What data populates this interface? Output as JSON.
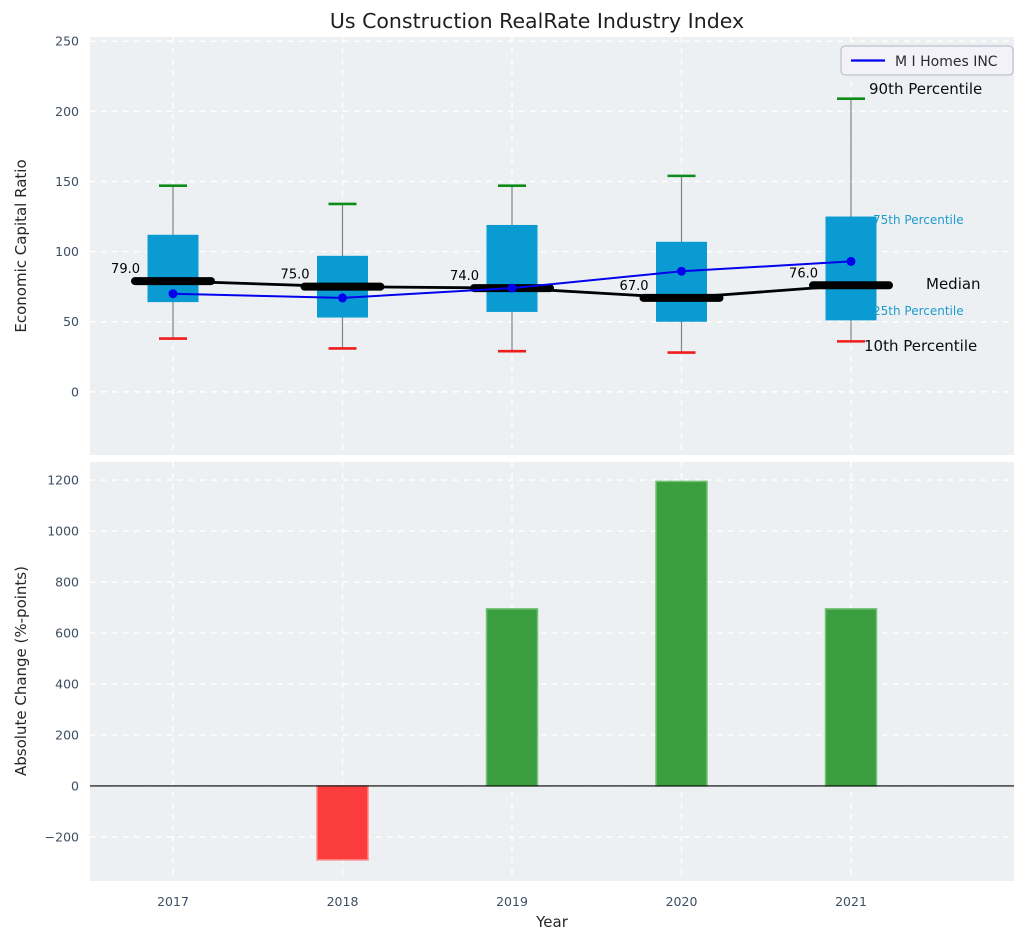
{
  "title": "Us Construction RealRate Industry Index",
  "legend": {
    "label": "M I Homes INC"
  },
  "colors": {
    "panel_bg": "#ecf0f2",
    "grid": "#ffffff",
    "box_fill": "#0a9bd3",
    "median_color": "#000000",
    "company_line": "#0202ee",
    "whisker": "#828282",
    "cap_top": "#0e8c1a",
    "cap_bottom": "#ee1c1c",
    "bar_positive": "#3b9e3f",
    "bar_positive_edge": "#74c178",
    "bar_negative": "#fb3d3d",
    "bar_negative_edge": "#ff8585",
    "tick_label": "#3d4f63",
    "annotation_percentile": "#1f9bcd",
    "legend_bg": "#f2f2f8",
    "legend_border": "#b5b5c0"
  },
  "chart_data": [
    {
      "type": "boxplot+line",
      "title": "Us Construction RealRate Industry Index",
      "ylabel": "Economic Capital Ratio",
      "ylim": [
        -45,
        253
      ],
      "yticks": [
        0,
        50,
        100,
        150,
        200,
        250
      ],
      "grid": "dashed-white",
      "categories": [
        "2017",
        "2018",
        "2019",
        "2020",
        "2021"
      ],
      "boxes": [
        {
          "year": "2017",
          "p10": 38,
          "p25": 64,
          "median": 79.0,
          "p75": 112,
          "p90": 147,
          "median_label": "79.0"
        },
        {
          "year": "2018",
          "p10": 31,
          "p25": 53,
          "median": 75.0,
          "p75": 97,
          "p90": 134,
          "median_label": "75.0"
        },
        {
          "year": "2019",
          "p10": 29,
          "p25": 57,
          "median": 74.0,
          "p75": 119,
          "p90": 147,
          "median_label": "74.0"
        },
        {
          "year": "2020",
          "p10": 28,
          "p25": 50,
          "median": 67.0,
          "p75": 107,
          "p90": 154,
          "median_label": "67.0"
        },
        {
          "year": "2021",
          "p10": 36,
          "p25": 51,
          "median": 76.0,
          "p75": 125,
          "p90": 209,
          "median_label": "76.0"
        }
      ],
      "series": [
        {
          "name": "M I Homes INC",
          "values": [
            70,
            67,
            74,
            86,
            93
          ]
        }
      ],
      "annotations": [
        {
          "text": "90th Percentile",
          "style": "black"
        },
        {
          "text": "75th Percentile",
          "style": "cyan"
        },
        {
          "text": "Median",
          "style": "black"
        },
        {
          "text": "25th Percentile",
          "style": "cyan"
        },
        {
          "text": "10th Percentile",
          "style": "black"
        }
      ],
      "legend_position": "upper right"
    },
    {
      "type": "bar",
      "xlabel": "Year",
      "ylabel": "Absolute Change (%-points)",
      "ylim": [
        -373,
        1271
      ],
      "yticks": [
        -200,
        0,
        200,
        400,
        600,
        800,
        1000,
        1200
      ],
      "grid": "dashed-white",
      "categories": [
        "2017",
        "2018",
        "2019",
        "2020",
        "2021"
      ],
      "values": [
        0,
        -290,
        695,
        1195,
        695
      ]
    }
  ]
}
